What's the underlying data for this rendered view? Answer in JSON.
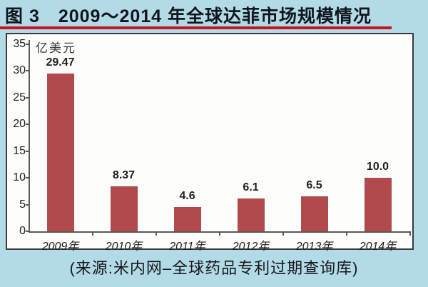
{
  "header": {
    "title": "图 3　2009～2014 年全球达菲市场规模情况"
  },
  "chart_data": {
    "type": "bar",
    "title": "2009～2014 年全球达菲市场规模情况",
    "categories": [
      "2009年",
      "2010年",
      "2011年",
      "2012年",
      "2013年",
      "2014年"
    ],
    "values": [
      29.47,
      8.37,
      4.6,
      6.1,
      6.5,
      10.0
    ],
    "value_labels": [
      "29.47",
      "8.37",
      "4.6",
      "6.1",
      "6.5",
      "10.0"
    ],
    "xlabel": "",
    "ylabel": "亿美元",
    "ylim": [
      0,
      35
    ],
    "yticks": [
      0,
      5,
      10,
      15,
      20,
      25,
      30,
      35
    ],
    "grid": false,
    "legend": "none",
    "bar_color": "#b04a4d"
  },
  "footer": {
    "source": "(来源:米内网–全球药品专利过期查询库)"
  },
  "colors": {
    "page_background": "#b3dbe7",
    "title_text": "#10161d",
    "title_underline": "#c3161f",
    "chart_background": "#fdfdfc",
    "chart_border": "#3b3b3b",
    "axis": "#5a5a5a",
    "bar": "#b04a4d",
    "label_text": "#1f1f1f"
  }
}
